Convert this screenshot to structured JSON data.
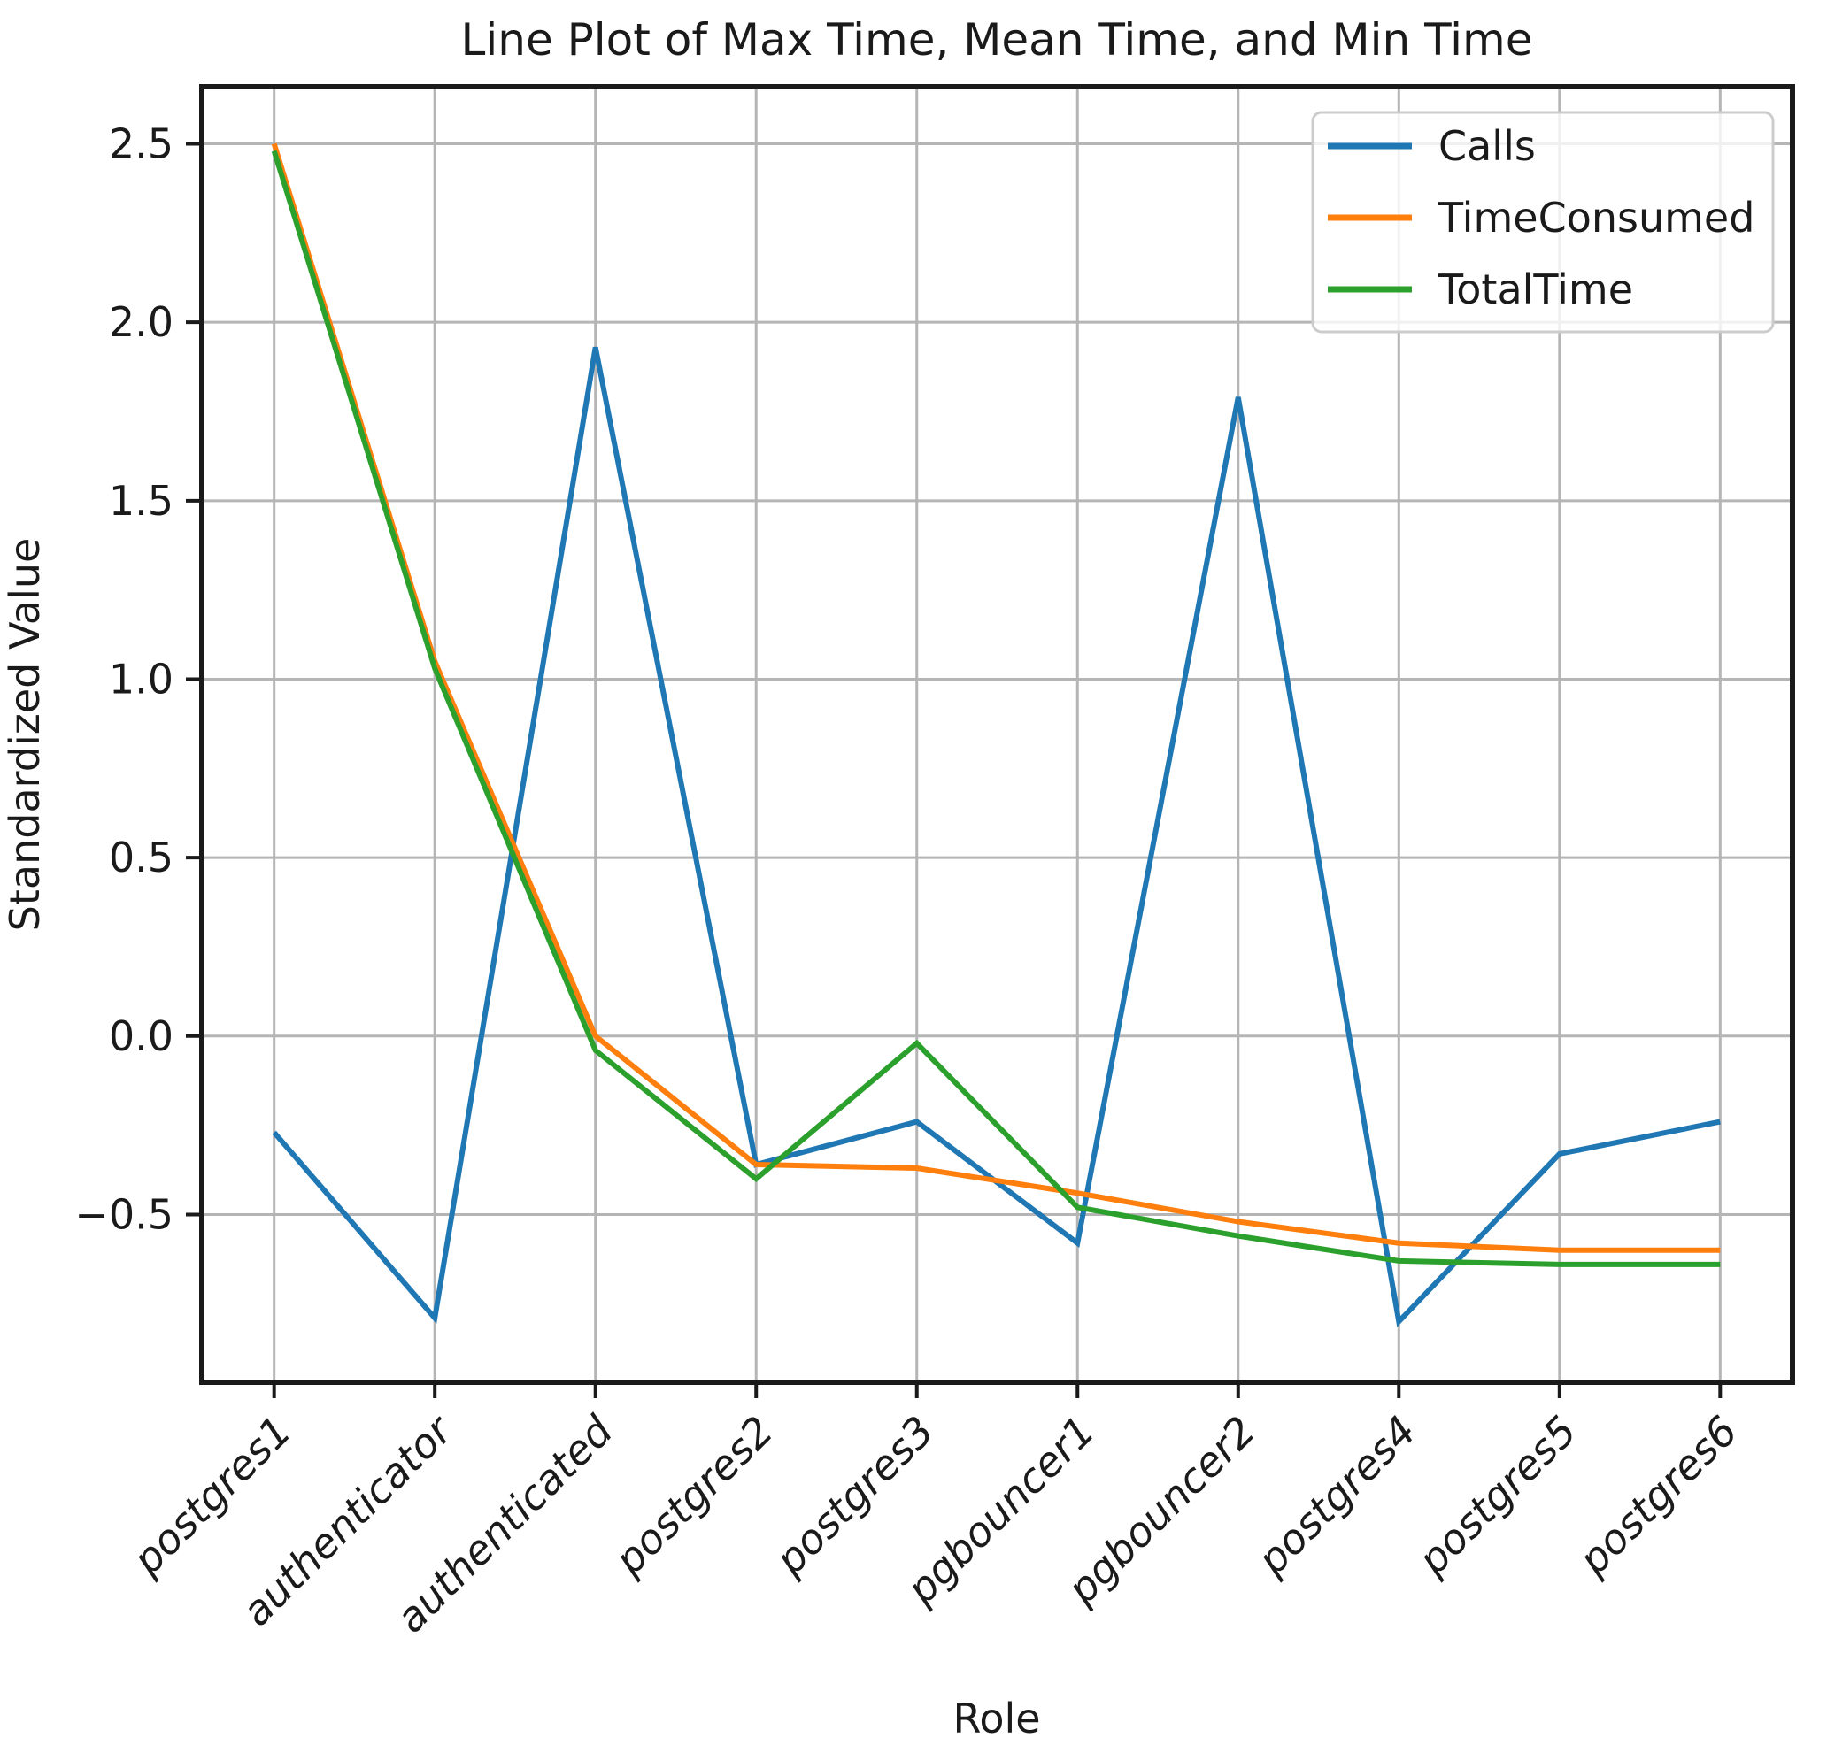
{
  "chart_data": {
    "type": "line",
    "title": "Line Plot of Max Time, Mean Time, and Min Time",
    "xlabel": "Role",
    "ylabel": "Standardized Value",
    "categories": [
      "postgres1",
      "authenticator",
      "authenticated",
      "postgres2",
      "postgres3",
      "pgbouncer1",
      "pgbouncer2",
      "postgres4",
      "postgres5",
      "postgres6"
    ],
    "series": [
      {
        "name": "Calls",
        "color": "#1f77b4",
        "values": [
          -0.27,
          -0.79,
          1.93,
          -0.36,
          -0.24,
          -0.58,
          1.79,
          -0.8,
          -0.33,
          -0.24
        ]
      },
      {
        "name": "TimeConsumed",
        "color": "#ff7f0e",
        "values": [
          2.5,
          1.05,
          0.0,
          -0.36,
          -0.37,
          -0.44,
          -0.52,
          -0.58,
          -0.6,
          -0.6
        ]
      },
      {
        "name": "TotalTime",
        "color": "#2ca02c",
        "values": [
          2.48,
          1.03,
          -0.04,
          -0.4,
          -0.02,
          -0.48,
          -0.56,
          -0.63,
          -0.64,
          -0.64
        ]
      }
    ],
    "yticks": {
      "values": [
        2.5,
        2.0,
        1.5,
        1.0,
        0.5,
        0.0,
        -0.5
      ],
      "labels": [
        "2.5",
        "2.0",
        "1.5",
        "1.0",
        "0.5",
        "0.0",
        "−0.5"
      ]
    },
    "ylim": [
      -0.97,
      2.66
    ],
    "grid": true,
    "legend": {
      "position": "upper right"
    },
    "style": {
      "background": "#ffffff",
      "grid_color": "#b5b5b5",
      "spine_color": "#1a1a1a",
      "text_color": "#1a1a1a",
      "legend_border": "#cccccc",
      "xtick_style": "italic"
    }
  }
}
